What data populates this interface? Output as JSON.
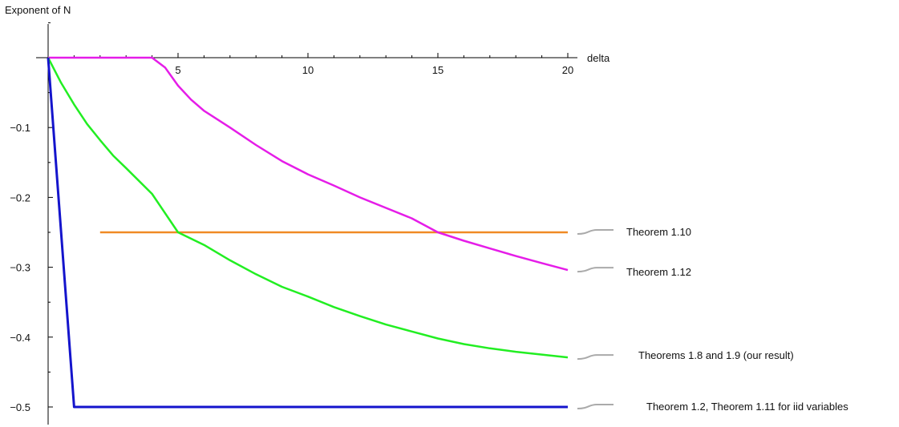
{
  "chart_data": {
    "type": "line",
    "title": "",
    "ylabel": "Exponent of N",
    "xlabel": "delta",
    "xlim": [
      0,
      20
    ],
    "ylim": [
      -0.52,
      0.035
    ],
    "x_ticks": [
      5,
      10,
      15,
      20
    ],
    "y_ticks": [
      -0.1,
      -0.2,
      -0.3,
      -0.4,
      -0.5
    ],
    "y_tick_labels": [
      "−0.1",
      "−0.2",
      "−0.3",
      "−0.4",
      "−0.5"
    ],
    "grid": false,
    "legend_placement": "right, callouts at line ends",
    "series": [
      {
        "name": "Theorem 1.10",
        "color": "#f08a24",
        "x": [
          2,
          20
        ],
        "y": [
          -0.25,
          -0.25
        ]
      },
      {
        "name": "Theorem 1.12",
        "color": "#e51de8",
        "x": [
          0,
          4,
          4.5,
          5,
          5.5,
          6,
          7,
          8,
          9,
          10,
          11,
          12,
          13,
          14,
          15,
          16,
          17,
          18,
          19,
          20
        ],
        "y": [
          0,
          0,
          -0.014,
          -0.04,
          -0.06,
          -0.076,
          -0.1,
          -0.125,
          -0.148,
          -0.167,
          -0.183,
          -0.2,
          -0.215,
          -0.23,
          -0.25,
          -0.262,
          -0.273,
          -0.284,
          -0.294,
          -0.304
        ]
      },
      {
        "name": "Theorems 1.8 and 1.9 (our result)",
        "color": "#22ee22",
        "x": [
          0,
          0.5,
          1,
          1.5,
          2,
          2.5,
          3,
          4,
          5,
          6,
          7,
          8,
          9,
          10,
          11,
          12,
          13,
          14,
          15,
          16,
          17,
          18,
          19,
          20
        ],
        "y": [
          0,
          -0.036,
          -0.067,
          -0.095,
          -0.118,
          -0.14,
          -0.158,
          -0.195,
          -0.25,
          -0.268,
          -0.29,
          -0.31,
          -0.328,
          -0.342,
          -0.357,
          -0.37,
          -0.382,
          -0.392,
          -0.402,
          -0.41,
          -0.416,
          -0.421,
          -0.425,
          -0.429
        ]
      },
      {
        "name": "Theorem 1.2, Theorem 1.11 for iid variables",
        "color": "#1414cc",
        "x": [
          0,
          1,
          20
        ],
        "y": [
          0,
          -0.5,
          -0.5
        ]
      }
    ]
  }
}
